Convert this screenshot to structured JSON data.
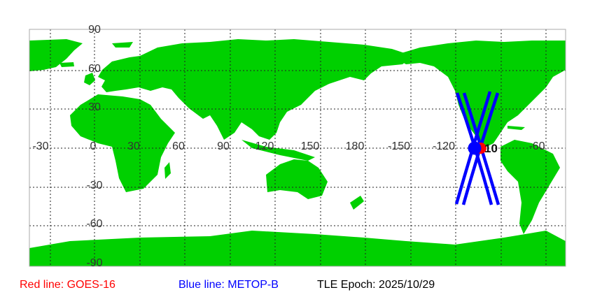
{
  "map": {
    "lat_labels": [
      "90",
      "60",
      "30",
      "-30",
      "-60",
      "-90"
    ],
    "lon_labels": [
      "-30",
      "0",
      "30",
      "60",
      "90",
      "120",
      "150",
      "180",
      "-150",
      "-120",
      "-60"
    ],
    "land_color": "#00d000",
    "grid": "dotted",
    "satellite_label": "10",
    "tracks": {
      "red_color": "#ff0000",
      "blue_color": "#0000ff"
    }
  },
  "legend": {
    "red": "Red line: GOES-16",
    "blue": "Blue line: METOP-B",
    "epoch": "TLE Epoch: 2025/10/29"
  }
}
